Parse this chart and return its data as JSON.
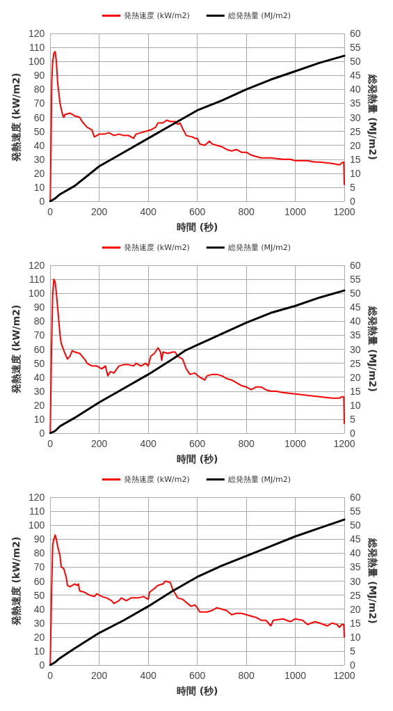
{
  "chart_data": [
    {
      "type": "line",
      "xlabel": "時間 (秒)",
      "ylabel": "発熱速度 (kW/m2)",
      "y2label": "総発熱量 (MJ/m2)",
      "xlim": [
        0,
        1200
      ],
      "xticks": [
        0,
        200,
        400,
        600,
        800,
        1000,
        1200
      ],
      "ylim": [
        0,
        120
      ],
      "yticks": [
        0,
        10,
        20,
        30,
        40,
        50,
        60,
        70,
        80,
        90,
        100,
        110,
        120
      ],
      "y2lim": [
        0,
        60
      ],
      "y2ticks": [
        0,
        5,
        10,
        15,
        20,
        25,
        30,
        35,
        40,
        45,
        50,
        55,
        60
      ],
      "grid": true,
      "legend": "top",
      "marker": "none",
      "line_style": "solid",
      "series": [
        {
          "name": "発熱速度 (kW/m2)",
          "color": "#ff0000",
          "x": [
            0,
            3,
            6,
            10,
            15,
            20,
            25,
            30,
            40,
            50,
            55,
            60,
            80,
            100,
            120,
            130,
            150,
            170,
            180,
            200,
            220,
            240,
            260,
            280,
            300,
            320,
            340,
            350,
            370,
            390,
            410,
            430,
            440,
            460,
            475,
            490,
            510,
            520,
            530,
            540,
            555,
            580,
            590,
            600,
            610,
            630,
            650,
            660,
            680,
            700,
            720,
            740,
            760,
            780,
            800,
            820,
            840,
            860,
            880,
            900,
            950,
            980,
            1000,
            1050,
            1080,
            1100,
            1150,
            1180,
            1195,
            1198,
            1200
          ],
          "values": [
            0,
            40,
            85,
            100,
            106,
            107,
            100,
            85,
            70,
            62,
            60,
            62,
            63,
            61,
            60,
            57,
            53,
            51,
            46,
            48,
            48,
            49,
            47,
            48,
            47,
            47,
            45,
            48,
            49,
            50,
            51,
            53,
            56,
            56,
            58,
            57,
            57,
            55,
            56,
            52,
            47,
            46,
            45,
            45,
            41,
            40,
            43,
            41,
            40,
            39,
            37,
            36,
            37,
            35,
            35,
            33,
            32,
            31,
            31,
            31,
            30,
            30,
            29,
            29,
            28,
            28,
            27,
            26,
            28,
            28,
            12
          ]
        },
        {
          "name": "総発熱量 (MJ/m2)",
          "color": "#000000",
          "axis": "y2",
          "x": [
            0,
            20,
            40,
            100,
            200,
            300,
            400,
            500,
            550,
            600,
            700,
            800,
            900,
            1000,
            1100,
            1200
          ],
          "values": [
            0,
            1,
            2.5,
            5.5,
            12.5,
            17.5,
            22.5,
            27.5,
            30,
            32.5,
            36,
            40,
            43.5,
            46.5,
            49.5,
            52
          ]
        }
      ]
    },
    {
      "type": "line",
      "xlabel": "時間 (秒)",
      "ylabel": "発熱速度 (kW/m2)",
      "y2label": "総発熱量 (MJ/m2)",
      "xlim": [
        0,
        1200
      ],
      "xticks": [
        0,
        200,
        400,
        600,
        800,
        1000,
        1200
      ],
      "ylim": [
        0,
        120
      ],
      "yticks": [
        0,
        10,
        20,
        30,
        40,
        50,
        60,
        70,
        80,
        90,
        100,
        110,
        120
      ],
      "y2lim": [
        0,
        60
      ],
      "y2ticks": [
        0,
        5,
        10,
        15,
        20,
        25,
        30,
        35,
        40,
        45,
        50,
        55,
        60
      ],
      "grid": true,
      "legend": "top",
      "marker": "none",
      "line_style": "solid",
      "series": [
        {
          "name": "発熱速度 (kW/m2)",
          "color": "#ff0000",
          "x": [
            0,
            5,
            10,
            15,
            20,
            25,
            30,
            40,
            45,
            60,
            70,
            80,
            90,
            100,
            120,
            140,
            150,
            170,
            190,
            210,
            225,
            235,
            245,
            260,
            280,
            300,
            320,
            340,
            350,
            370,
            390,
            400,
            410,
            425,
            440,
            450,
            455,
            460,
            480,
            500,
            510,
            520,
            540,
            555,
            570,
            590,
            610,
            630,
            640,
            660,
            680,
            700,
            720,
            740,
            760,
            780,
            800,
            820,
            840,
            860,
            880,
            900,
            920,
            950,
            1000,
            1050,
            1100,
            1150,
            1180,
            1190,
            1198,
            1200
          ],
          "values": [
            0,
            60,
            100,
            110,
            108,
            100,
            90,
            70,
            64,
            57,
            53,
            55,
            59,
            58,
            57,
            53,
            50,
            48,
            48,
            46,
            48,
            41,
            44,
            43,
            48,
            49,
            49,
            48,
            50,
            48,
            50,
            48,
            55,
            57,
            61,
            58,
            52,
            58,
            57,
            58,
            58,
            55,
            53,
            46,
            42,
            43,
            40,
            38,
            41,
            42,
            42,
            41,
            39,
            38,
            36,
            34,
            33,
            31,
            33,
            33,
            31,
            30,
            30,
            29,
            28,
            27,
            26,
            25,
            25,
            26,
            26,
            7
          ]
        },
        {
          "name": "総発熱量 (MJ/m2)",
          "color": "#000000",
          "axis": "y2",
          "x": [
            0,
            20,
            40,
            100,
            200,
            300,
            400,
            500,
            550,
            600,
            700,
            800,
            900,
            1000,
            1100,
            1200
          ],
          "values": [
            0,
            0.8,
            2.5,
            5.5,
            11,
            16,
            21,
            26.5,
            29.5,
            31.5,
            35.5,
            39.5,
            43,
            45.5,
            48.5,
            51
          ]
        }
      ]
    },
    {
      "type": "line",
      "xlabel": "時間 (秒)",
      "ylabel": "発熱速度 (kW/m2)",
      "y2label": "総発熱量 (MJ/m2)",
      "xlim": [
        0,
        1200
      ],
      "xticks": [
        0,
        200,
        400,
        600,
        800,
        1000,
        1200
      ],
      "ylim": [
        0,
        120
      ],
      "yticks": [
        0,
        10,
        20,
        30,
        40,
        50,
        60,
        70,
        80,
        90,
        100,
        110,
        120
      ],
      "y2lim": [
        0,
        60
      ],
      "y2ticks": [
        0,
        5,
        10,
        15,
        20,
        25,
        30,
        35,
        40,
        45,
        50,
        55,
        60
      ],
      "grid": true,
      "legend": "top",
      "marker": "none",
      "line_style": "solid",
      "series": [
        {
          "name": "発熱速度 (kW/m2)",
          "color": "#ff0000",
          "x": [
            0,
            5,
            10,
            15,
            20,
            25,
            30,
            40,
            45,
            55,
            65,
            70,
            80,
            100,
            110,
            115,
            120,
            140,
            160,
            180,
            190,
            210,
            230,
            250,
            260,
            280,
            290,
            310,
            330,
            360,
            380,
            400,
            405,
            420,
            440,
            460,
            470,
            490,
            500,
            510,
            520,
            540,
            560,
            575,
            590,
            600,
            610,
            640,
            660,
            680,
            700,
            720,
            740,
            760,
            780,
            800,
            820,
            840,
            860,
            880,
            900,
            910,
            950,
            980,
            1000,
            1030,
            1050,
            1080,
            1100,
            1130,
            1150,
            1170,
            1180,
            1190,
            1198,
            1200
          ],
          "values": [
            0,
            50,
            86,
            90,
            93,
            90,
            85,
            78,
            70,
            69,
            63,
            57,
            56,
            58,
            57,
            58,
            53,
            52,
            50,
            49,
            51,
            49,
            48,
            46,
            44,
            46,
            48,
            46,
            48,
            48,
            49,
            47,
            52,
            54,
            57,
            58,
            60,
            59,
            54,
            51,
            48,
            47,
            44,
            42,
            43,
            41,
            38,
            38,
            39,
            41,
            40,
            39,
            36,
            37,
            37,
            36,
            35,
            34,
            32,
            32,
            28,
            32,
            33,
            31,
            33,
            32,
            29,
            31,
            30,
            28,
            30,
            29,
            27,
            29,
            29,
            20
          ]
        },
        {
          "name": "総発熱量 (MJ/m2)",
          "color": "#000000",
          "axis": "y2",
          "x": [
            0,
            20,
            40,
            100,
            200,
            300,
            400,
            500,
            550,
            600,
            700,
            800,
            900,
            1000,
            1100,
            1200
          ],
          "values": [
            0,
            1,
            2.5,
            6,
            11.5,
            16,
            21,
            26.5,
            29,
            31.5,
            35.5,
            39,
            42.5,
            46,
            49,
            52
          ]
        }
      ]
    }
  ]
}
